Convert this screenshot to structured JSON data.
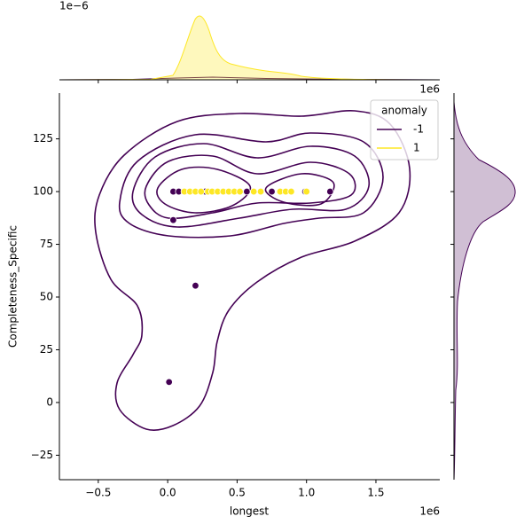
{
  "chart_data": {
    "type": "scatter",
    "x_label": "longest",
    "y_label": "Completeness_Specific",
    "x_offset": "1e6",
    "top_offset": "1e6",
    "top_marginal_offset": "1e−6",
    "xlim": [
      -0.78,
      1.96
    ],
    "ylim": [
      -36.6,
      146.7
    ],
    "xticks": [
      {
        "value": -0.5,
        "label": "−0.5"
      },
      {
        "value": 0,
        "label": "0.0"
      },
      {
        "value": 0.5,
        "label": "0.5"
      },
      {
        "value": 1,
        "label": "1.0"
      },
      {
        "value": 1.5,
        "label": "1.5"
      }
    ],
    "yticks": [
      {
        "value": -25,
        "label": "−25"
      },
      0,
      25,
      50,
      75,
      100,
      125
    ],
    "legend_title": "anomaly",
    "legend": "upper right",
    "series": [
      {
        "name": "-1",
        "color": "#440154",
        "x": [
          0.04,
          0.08,
          0.27,
          0.57,
          0.75,
          0.99,
          1.17,
          0.04,
          0.2,
          0.01
        ],
        "y": [
          100,
          100,
          100,
          100,
          100,
          100,
          100,
          86.5,
          55.4,
          9.7
        ]
      },
      {
        "name": "1",
        "color": "#fde725",
        "x": [
          0.12,
          0.16,
          0.2,
          0.24,
          0.29,
          0.32,
          0.36,
          0.4,
          0.44,
          0.48,
          0.52,
          0.62,
          0.67,
          0.81,
          0.85,
          0.89,
          1.0
        ],
        "y": [
          100,
          100,
          100,
          100,
          100,
          100,
          100,
          100,
          100,
          100,
          100,
          100,
          100,
          100,
          100,
          100,
          100
        ]
      }
    ]
  }
}
